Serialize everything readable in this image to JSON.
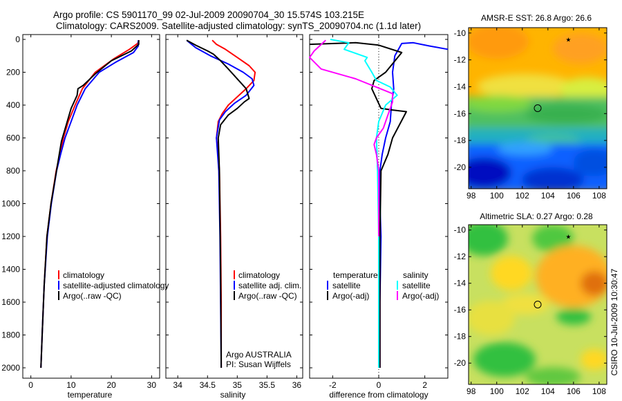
{
  "title_line1": "Argo profile: CS 5901170_99 02-Jul-2009 20090704_30 15.574S 103.215E",
  "title_line2": "Climatology: CARS2009. Satellite-adjusted climatology: synTS_20090704.nc (1.1d later)",
  "side_label": "CSIRO 10-Jul-2009 10:30:47",
  "colors": {
    "climatology": "#ff0000",
    "satellite": "#0000ff",
    "argo": "#000000",
    "argo_raw_sal": "#00ffff",
    "argo_adj_sal": "#ff00ff"
  },
  "chart_data": [
    {
      "type": "line",
      "name": "temperature-panel",
      "xlabel": "temperature",
      "xlim": [
        -2,
        32
      ],
      "ylim": [
        0,
        2050
      ],
      "y_inverted": true,
      "xticks": [
        0,
        10,
        20,
        30
      ],
      "yticks": [
        0,
        200,
        400,
        600,
        800,
        1000,
        1200,
        1400,
        1600,
        1800,
        2000
      ],
      "legend": [
        "climatology",
        "satellite-adjusted climatology",
        "Argo(..raw -QC)"
      ],
      "series": [
        {
          "name": "climatology",
          "color": "#ff0000",
          "x": [
            26.9,
            26.5,
            24.5,
            20.5,
            16,
            12.8,
            11,
            9.3,
            8.1,
            7.2,
            6.3,
            5,
            4,
            3.3,
            2.8,
            2.5
          ],
          "y": [
            5,
            25,
            60,
            120,
            200,
            300,
            400,
            500,
            600,
            700,
            800,
            1000,
            1200,
            1500,
            1800,
            2000
          ]
        },
        {
          "name": "satellite-adjusted climatology",
          "color": "#0000ff",
          "x": [
            26.7,
            26.7,
            25.5,
            21,
            17,
            13.5,
            11.5,
            10,
            8.5,
            7.4,
            6.4,
            5.1,
            4.1,
            3.3,
            2.8,
            2.5
          ],
          "y": [
            5,
            40,
            80,
            140,
            200,
            300,
            400,
            500,
            600,
            700,
            800,
            1000,
            1200,
            1500,
            1800,
            2000
          ]
        },
        {
          "name": "Argo(..raw -QC)",
          "color": "#000000",
          "x": [
            26.8,
            26.8,
            25,
            20,
            16,
            13,
            11.7,
            11.5,
            10,
            8.8,
            7.6,
            5,
            4,
            3.3,
            2.8,
            2.5
          ],
          "y": [
            5,
            30,
            70,
            130,
            210,
            280,
            300,
            340,
            420,
            520,
            620,
            1000,
            1200,
            1500,
            1800,
            2000
          ]
        }
      ]
    },
    {
      "type": "line",
      "name": "salinity-panel",
      "xlabel": "salinity",
      "xlim": [
        33.8,
        36.1
      ],
      "ylim": [
        0,
        2050
      ],
      "y_inverted": true,
      "xticks": [
        34,
        34.5,
        35,
        35.5,
        36
      ],
      "xticklabels": [
        "34",
        "34.5",
        "35",
        "35.5",
        "36"
      ],
      "legend": [
        "climatology",
        "satellite adj. clim.",
        "Argo(..raw -QC)"
      ],
      "annotation": [
        "Argo AUSTRALIA",
        "PI: Susan Wijffels"
      ],
      "series": [
        {
          "name": "climatology",
          "color": "#ff0000",
          "x": [
            34.58,
            34.65,
            34.8,
            35.0,
            35.2,
            35.3,
            35.28,
            35.15,
            35.0,
            34.85,
            34.75,
            34.68,
            34.65,
            34.68,
            34.7,
            34.72,
            34.73,
            34.73
          ],
          "y": [
            5,
            30,
            60,
            110,
            160,
            200,
            250,
            300,
            350,
            400,
            450,
            500,
            600,
            700,
            800,
            1200,
            1600,
            2000
          ]
        },
        {
          "name": "satellite adj. clim.",
          "color": "#0000ff",
          "x": [
            34.15,
            34.2,
            34.3,
            34.55,
            34.85,
            35.1,
            35.25,
            35.28,
            35.15,
            34.95,
            34.8,
            34.7,
            34.65,
            34.67,
            34.69,
            34.71,
            34.72,
            34.73
          ],
          "y": [
            5,
            20,
            50,
            100,
            150,
            200,
            240,
            280,
            340,
            390,
            440,
            490,
            600,
            700,
            800,
            1200,
            1600,
            2000
          ]
        },
        {
          "name": "Argo(..raw -QC)",
          "color": "#000000",
          "x": [
            34.15,
            34.3,
            34.5,
            34.6,
            34.72,
            34.85,
            34.95,
            35.05,
            35.15,
            35.2,
            35.12,
            35.0,
            34.85,
            34.72,
            34.68,
            34.7,
            34.72,
            34.73
          ],
          "y": [
            5,
            35,
            70,
            90,
            130,
            180,
            220,
            260,
            300,
            360,
            380,
            420,
            460,
            520,
            600,
            800,
            1400,
            2000
          ]
        }
      ]
    },
    {
      "type": "line",
      "name": "difference-panel",
      "xlabel": "difference from climatology",
      "xlim": [
        -3,
        3
      ],
      "ylim": [
        0,
        2050
      ],
      "y_inverted": true,
      "xticks": [
        -2,
        0,
        2
      ],
      "legend_temperature_header": "temperature",
      "legend_salinity_header": "salinity",
      "legend": [
        "satellite",
        "Argo(-adj)",
        "satellite",
        "Argo(-adj)"
      ],
      "series": [
        {
          "name": "temperature satellite",
          "color": "#0000ff",
          "x": [
            3,
            2.2,
            1.5,
            1.0,
            0.7,
            0.6,
            0.65,
            0.55,
            0.5,
            0.3,
            0.15,
            0.05,
            0.05,
            0.1,
            0.05,
            0.05
          ],
          "y": [
            60,
            40,
            20,
            25,
            100,
            200,
            300,
            400,
            500,
            600,
            700,
            800,
            1000,
            1200,
            1600,
            2000
          ]
        },
        {
          "name": "temperature Argo(-adj)",
          "color": "#000000",
          "x": [
            -3,
            -1,
            0.0,
            1.0,
            0.3,
            -0.2,
            -0.3,
            0.1,
            0.6,
            1.2,
            0.9,
            0.6,
            0.4,
            0.1,
            0.05,
            0.05
          ],
          "y": [
            30,
            20,
            35,
            80,
            200,
            250,
            300,
            420,
            430,
            440,
            520,
            600,
            700,
            800,
            1200,
            2000
          ]
        },
        {
          "name": "salinity satellite",
          "color": "#00ffff",
          "x": [
            -2.1,
            -1.3,
            -1.5,
            -0.5,
            -0.6,
            -0.3,
            -0.1,
            0.5,
            0.8,
            0.3,
            0.0,
            -0.1,
            -0.05,
            0.0,
            0.0,
            0.0
          ],
          "y": [
            0,
            20,
            60,
            110,
            130,
            200,
            250,
            290,
            340,
            400,
            500,
            600,
            800,
            1200,
            1600,
            2000
          ]
        },
        {
          "name": "salinity Argo(-adj)",
          "color": "#ff00ff",
          "x": [
            -2.3,
            -2.8,
            -3,
            -2.5,
            -1.0,
            0.6,
            0.6,
            0.4,
            0.2,
            -0.1,
            -0.2,
            -0.1,
            0.0,
            0.0
          ],
          "y": [
            5,
            70,
            110,
            180,
            240,
            330,
            380,
            460,
            540,
            600,
            640,
            700,
            800,
            1200
          ]
        }
      ]
    },
    {
      "type": "heatmap",
      "name": "sst-map",
      "title": "AMSR-E SST: 26.8 Argo: 26.6",
      "xlim": [
        97.8,
        108.6
      ],
      "ylim": [
        -21.6,
        -9.6
      ],
      "xticks": [
        98,
        100,
        102,
        104,
        106,
        108
      ],
      "yticks": [
        -10,
        -12,
        -14,
        -16,
        -18,
        -20
      ],
      "markers": {
        "argo_circle": [
          103.2,
          -15.6
        ],
        "star": [
          105.6,
          -10.5
        ]
      }
    },
    {
      "type": "heatmap",
      "name": "sla-map",
      "title": "Altimetric SLA: 0.27 Argo: 0.28",
      "xlim": [
        97.8,
        108.6
      ],
      "ylim": [
        -21.6,
        -9.6
      ],
      "xticks": [
        98,
        100,
        102,
        104,
        106,
        108
      ],
      "yticks": [
        -10,
        -12,
        -14,
        -16,
        -18,
        -20
      ],
      "markers": {
        "argo_circle": [
          103.2,
          -15.6
        ],
        "star": [
          105.6,
          -10.5
        ]
      }
    }
  ]
}
